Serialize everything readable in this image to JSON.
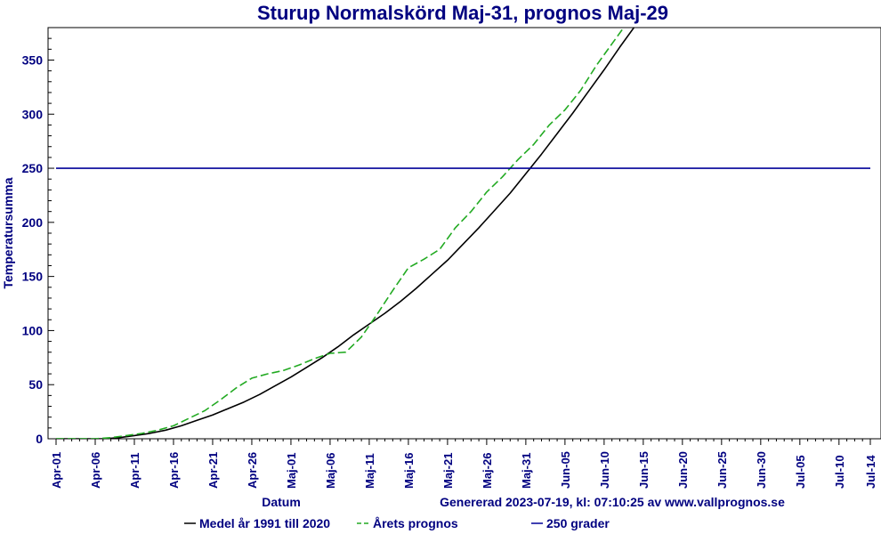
{
  "colors": {
    "text": "#000080",
    "axis": "#000000",
    "medel": "#000000",
    "prognos": "#22aa22",
    "threshold": "#000099"
  },
  "chart_data": {
    "type": "line",
    "title": "Sturup Normalskörd Maj-31, prognos Maj-29",
    "xlabel": "Datum",
    "ylabel": "Temperatursumma",
    "footer": "Genererad 2023-07-19, kl: 07:10:25 av www.vallprognos.se",
    "ylim": [
      0,
      380
    ],
    "yticks": [
      0,
      50,
      100,
      150,
      200,
      250,
      300,
      350
    ],
    "x_start": "Apr-01",
    "x_end": "Jul-14",
    "xticks": [
      {
        "day": 0,
        "label": "Apr-01"
      },
      {
        "day": 5,
        "label": "Apr-06"
      },
      {
        "day": 10,
        "label": "Apr-11"
      },
      {
        "day": 15,
        "label": "Apr-16"
      },
      {
        "day": 20,
        "label": "Apr-21"
      },
      {
        "day": 25,
        "label": "Apr-26"
      },
      {
        "day": 30,
        "label": "Maj-01"
      },
      {
        "day": 35,
        "label": "Maj-06"
      },
      {
        "day": 40,
        "label": "Maj-11"
      },
      {
        "day": 45,
        "label": "Maj-16"
      },
      {
        "day": 50,
        "label": "Maj-21"
      },
      {
        "day": 55,
        "label": "Maj-26"
      },
      {
        "day": 60,
        "label": "Maj-31"
      },
      {
        "day": 65,
        "label": "Jun-05"
      },
      {
        "day": 70,
        "label": "Jun-10"
      },
      {
        "day": 75,
        "label": "Jun-15"
      },
      {
        "day": 80,
        "label": "Jun-20"
      },
      {
        "day": 85,
        "label": "Jun-25"
      },
      {
        "day": 90,
        "label": "Jun-30"
      },
      {
        "day": 95,
        "label": "Jul-05"
      },
      {
        "day": 100,
        "label": "Jul-10"
      },
      {
        "day": 104,
        "label": "Jul-14"
      }
    ],
    "series": [
      {
        "name": "Medel år 1991 till 2020",
        "style": "solid",
        "color": "#000000",
        "x": [
          0,
          6,
          8,
          10,
          12,
          14,
          16,
          18,
          20,
          22,
          24,
          26,
          28,
          30,
          32,
          34,
          36,
          38,
          40,
          42,
          44,
          46,
          48,
          50,
          52,
          54,
          56,
          58,
          60,
          62,
          64,
          66,
          68,
          70,
          72,
          74,
          75.5
        ],
        "y": [
          0,
          0,
          1,
          3,
          5,
          8,
          12,
          17,
          22,
          28,
          34,
          41,
          49,
          57,
          66,
          75,
          85,
          96,
          106,
          116,
          127,
          139,
          152,
          165,
          180,
          195,
          211,
          227,
          245,
          263,
          282,
          301,
          321,
          341,
          362,
          382,
          395
        ]
      },
      {
        "name": "Årets prognos",
        "style": "dashed",
        "color": "#22aa22",
        "x": [
          0,
          5,
          7,
          9,
          11,
          13,
          15,
          17,
          19,
          21,
          23,
          25,
          27,
          29,
          31,
          33,
          35,
          37,
          39,
          41,
          43,
          45,
          47,
          49,
          51,
          53,
          55,
          57,
          59,
          61,
          63,
          65,
          67,
          69,
          71,
          73,
          74
        ],
        "y": [
          0,
          0,
          1,
          3,
          5,
          8,
          12,
          19,
          26,
          36,
          47,
          56,
          60,
          63,
          68,
          74,
          79,
          80,
          94,
          115,
          137,
          158,
          166,
          175,
          195,
          210,
          228,
          242,
          258,
          272,
          290,
          304,
          322,
          345,
          365,
          385,
          395
        ]
      },
      {
        "name": "250 grader",
        "style": "solid",
        "color": "#000099",
        "x": [
          0,
          104
        ],
        "y": [
          250,
          250
        ]
      }
    ],
    "legend_position": "bottom"
  }
}
